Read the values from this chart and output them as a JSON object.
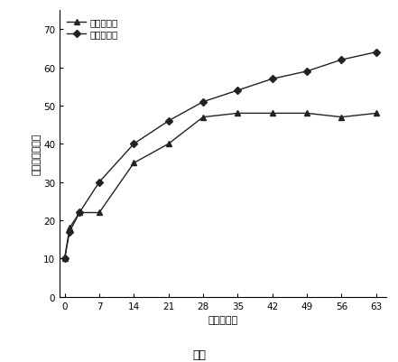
{
  "series1_label": "製劑番号１",
  "series2_label": "製劑番号２",
  "series1_x": [
    0,
    1,
    3,
    7,
    14,
    21,
    28,
    35,
    42,
    49,
    56,
    63
  ],
  "series1_y": [
    10,
    18,
    22,
    22,
    35,
    40,
    47,
    48,
    48,
    48,
    47,
    48
  ],
  "series2_x": [
    0,
    1,
    3,
    7,
    14,
    21,
    28,
    35,
    42,
    49,
    56,
    63
  ],
  "series2_y": [
    10,
    17,
    22,
    30,
    40,
    46,
    51,
    54,
    57,
    59,
    62,
    64
  ],
  "xlabel": "時間（日）",
  "ylabel": "累積放出（％）",
  "caption": "図２",
  "xlim": [
    -1,
    65
  ],
  "ylim": [
    0,
    75
  ],
  "xticks": [
    0,
    7,
    14,
    21,
    28,
    35,
    42,
    49,
    56,
    63
  ],
  "yticks": [
    0,
    10,
    20,
    30,
    40,
    50,
    60,
    70
  ],
  "line_color1": "#222222",
  "line_color2": "#222222",
  "marker1": "^",
  "marker2": "D",
  "markersize": 4,
  "linewidth": 1.0,
  "background_color": "#ffffff",
  "figsize": [
    4.41,
    4.02
  ],
  "dpi": 100
}
